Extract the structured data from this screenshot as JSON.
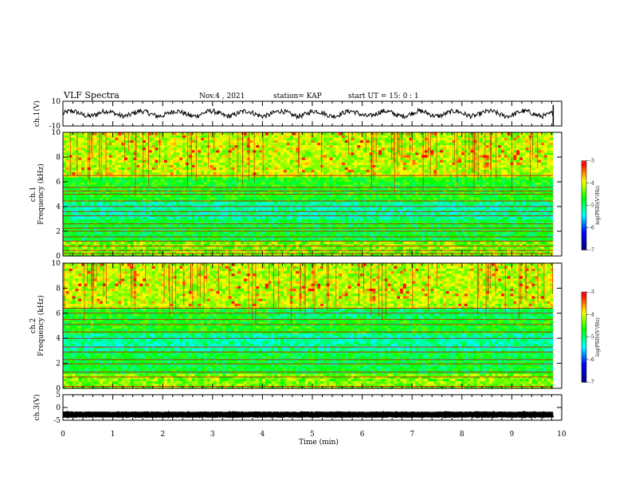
{
  "header": {
    "title": "VLF Spectra",
    "date": "Nov.4 , 2021",
    "station": "station= KAP",
    "start_time": "start UT = 15: 0 : 1"
  },
  "chart_data": [
    {
      "type": "line",
      "name": "ch1-waveform",
      "ylabel": "ch.1(V)",
      "ylim": [
        -10,
        10
      ],
      "yticks": [
        "10",
        "-10"
      ],
      "xlim": [
        0,
        10
      ],
      "data_end_min": 9.83,
      "mean_v": 0,
      "amplitude_v": 4
    },
    {
      "type": "heatmap",
      "name": "ch1-spectrogram",
      "ylabel": "ch.1\nFrequency (kHz)",
      "ylim": [
        0,
        10
      ],
      "yticks": [
        "0",
        "2",
        "4",
        "6",
        "8",
        "10"
      ],
      "xlim": [
        0,
        10
      ],
      "data_end_min": 9.83,
      "colorbar": {
        "label": "log(PSD)(V²/Hz)",
        "range": [
          -7,
          -3
        ],
        "ticks": [
          "-3",
          "-4",
          "-5",
          "-6",
          "-7"
        ]
      },
      "bands_khz": [
        0.2,
        0.45,
        0.8,
        1.2,
        1.55,
        2.0,
        2.25,
        2.6,
        3.25,
        3.6,
        4.0,
        4.45,
        5.0,
        5.25,
        5.55,
        6.5
      ],
      "step_change_min": null
    },
    {
      "type": "heatmap",
      "name": "ch2-spectrogram",
      "ylabel": "ch.2\nFrequency (kHz)",
      "ylim": [
        0,
        10
      ],
      "yticks": [
        "0",
        "2",
        "4",
        "6",
        "8",
        "10"
      ],
      "xlim": [
        0,
        10
      ],
      "data_end_min": 9.83,
      "colorbar": {
        "label": "log(PSD)(V²/Hz)",
        "range": [
          -7,
          -3
        ],
        "ticks": [
          "-3",
          "-4",
          "-5",
          "-6",
          "-7"
        ]
      },
      "bands_khz": [
        0.15,
        0.9,
        1.3,
        1.95,
        2.3,
        2.9,
        3.3,
        4.0,
        4.5,
        5.1,
        5.5,
        6.0,
        6.4
      ],
      "step_change_min": 4.1
    },
    {
      "type": "line",
      "name": "ch3-waveform",
      "ylabel": "ch.3(V)",
      "ylim": [
        -5,
        5
      ],
      "yticks": [
        "5",
        "0",
        "-5"
      ],
      "xlim": [
        0,
        10
      ],
      "data_end_min": 9.83,
      "mean_v": -2.8,
      "amplitude_v": 0.4
    }
  ],
  "x_axis": {
    "label": "Time (min)",
    "ticks": [
      "0",
      "1",
      "2",
      "3",
      "4",
      "5",
      "6",
      "7",
      "8",
      "9",
      "10"
    ]
  },
  "colors": {
    "axis": "#000000",
    "waveform": "#000000",
    "colormap": [
      "#00007f",
      "#0000ff",
      "#00ffff",
      "#00ff00",
      "#ffff00",
      "#ff0000",
      "#ffffff"
    ]
  }
}
